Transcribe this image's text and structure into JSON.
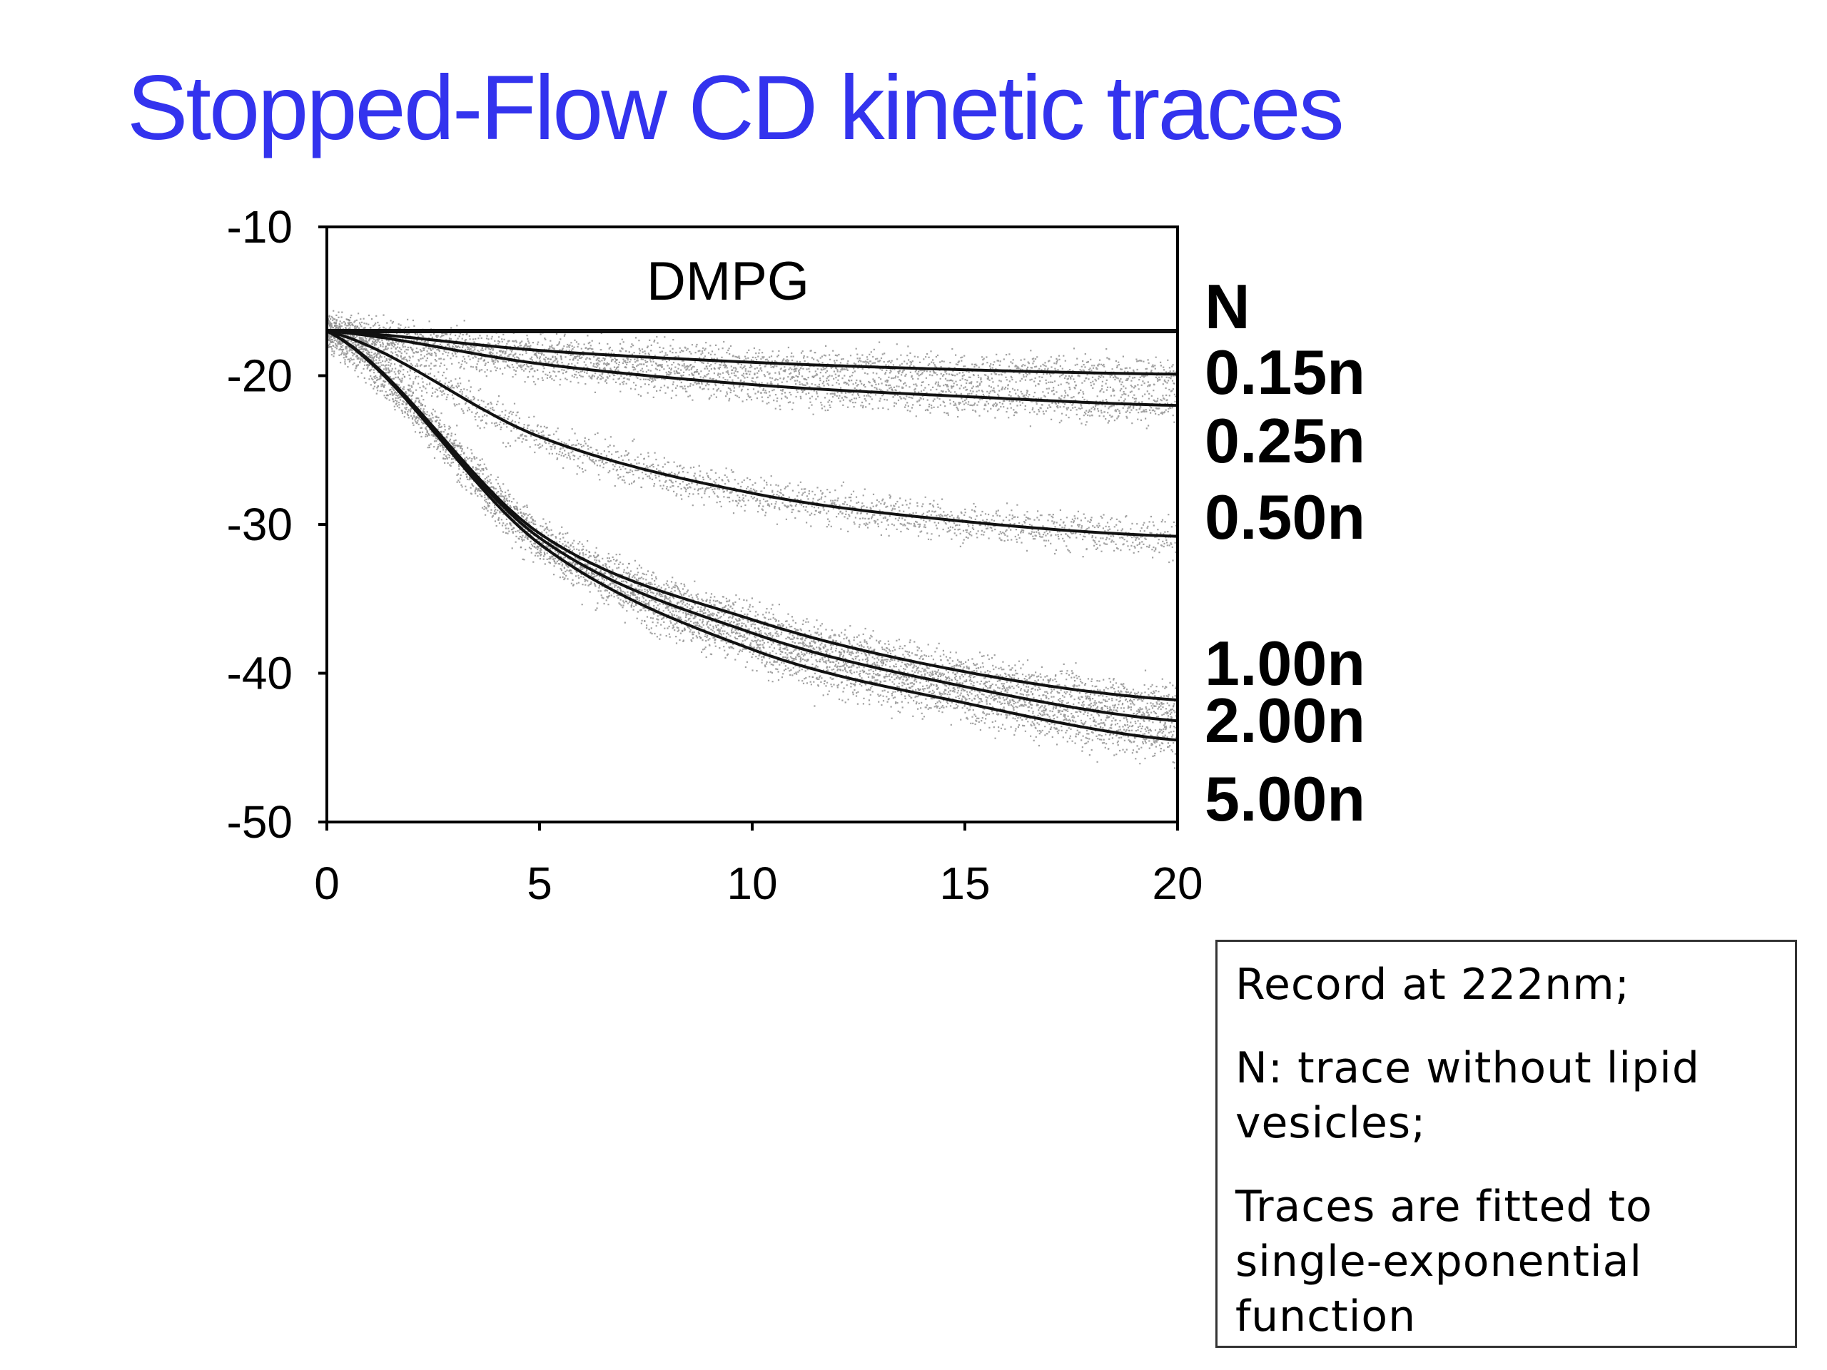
{
  "slide": {
    "title": "Stopped-Flow CD kinetic traces",
    "title_color": "#3333ee"
  },
  "notes": [
    "Record at 222nm;",
    "N: trace without lipid vesicles;",
    "Traces are fitted to single-exponential function"
  ],
  "chart_data": {
    "type": "scatter",
    "title": "DMPG",
    "xlabel": "",
    "ylabel": "",
    "xlim": [
      0,
      20
    ],
    "ylim": [
      -50,
      -10
    ],
    "x_ticks": [
      "0",
      "5",
      "10",
      "15",
      "20"
    ],
    "y_ticks": [
      "-10",
      "-20",
      "-30",
      "-40",
      "-50"
    ],
    "grid": false,
    "legend": "right-side labels at line ends",
    "raw_data_color": "#8a8a8a",
    "fit_color": "#111111",
    "series": [
      {
        "name": "N",
        "x": [
          0,
          5,
          10,
          15,
          20
        ],
        "y": [
          -17.0,
          -17.0,
          -17.0,
          -17.0,
          -17.0
        ]
      },
      {
        "name": "0.15n",
        "x": [
          0,
          5,
          10,
          15,
          20
        ],
        "y": [
          -17.0,
          -18.3,
          -19.1,
          -19.6,
          -19.9
        ]
      },
      {
        "name": "0.25n",
        "x": [
          0,
          5,
          10,
          15,
          20
        ],
        "y": [
          -17.0,
          -19.2,
          -20.6,
          -21.4,
          -22.0
        ]
      },
      {
        "name": "0.50n",
        "x": [
          0,
          5,
          10,
          15,
          20
        ],
        "y": [
          -17.0,
          -24.1,
          -27.9,
          -29.8,
          -30.8
        ]
      },
      {
        "name": "1.00n",
        "x": [
          0,
          5,
          10,
          15,
          20
        ],
        "y": [
          -17.0,
          -30.6,
          -36.4,
          -39.9,
          -41.8
        ]
      },
      {
        "name": "2.00n",
        "x": [
          0,
          5,
          10,
          15,
          20
        ],
        "y": [
          -17.0,
          -30.9,
          -37.3,
          -40.9,
          -43.2
        ]
      },
      {
        "name": "5.00n",
        "x": [
          0,
          5,
          10,
          15,
          20
        ],
        "y": [
          -17.0,
          -31.3,
          -38.4,
          -42.0,
          -44.5
        ]
      }
    ]
  }
}
